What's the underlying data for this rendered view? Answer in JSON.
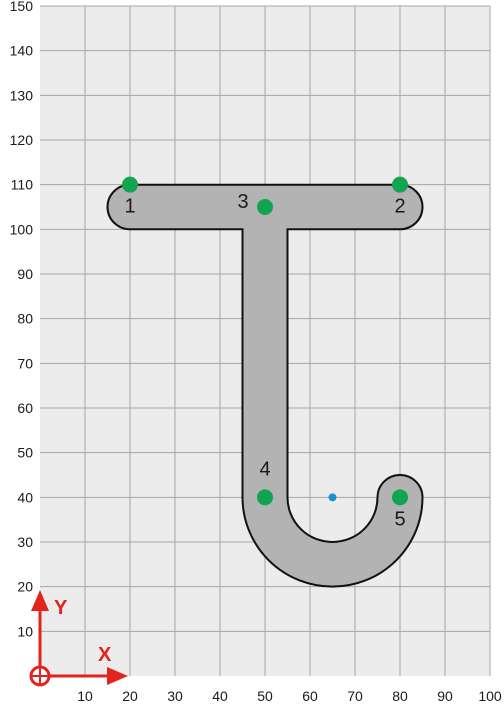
{
  "plot": {
    "xlim": [
      0,
      100
    ],
    "ylim": [
      0,
      150
    ],
    "x_ticks": [
      "10",
      "20",
      "30",
      "40",
      "50",
      "60",
      "70",
      "80",
      "90",
      "100"
    ],
    "y_ticks": [
      "10",
      "20",
      "30",
      "40",
      "50",
      "60",
      "70",
      "80",
      "90",
      "100",
      "110",
      "120",
      "130",
      "140",
      "150"
    ],
    "grid": true
  },
  "axes": {
    "x_label": "X",
    "y_label": "Y"
  },
  "colors": {
    "background": "#ececec",
    "grid": "#a6a6a6",
    "shape_fill": "#b3b3b3",
    "shape_stroke": "#111111",
    "points": "#12a551",
    "center_marker": "#1e8fd6",
    "axes": "#e3241c"
  },
  "points": [
    {
      "label": "1",
      "x": 20,
      "y": 110
    },
    {
      "label": "2",
      "x": 80,
      "y": 110
    },
    {
      "label": "3",
      "x": 50,
      "y": 105
    },
    {
      "label": "4",
      "x": 50,
      "y": 40
    },
    {
      "label": "5",
      "x": 80,
      "y": 40
    }
  ],
  "center_marker": {
    "x": 65,
    "y": 40
  }
}
